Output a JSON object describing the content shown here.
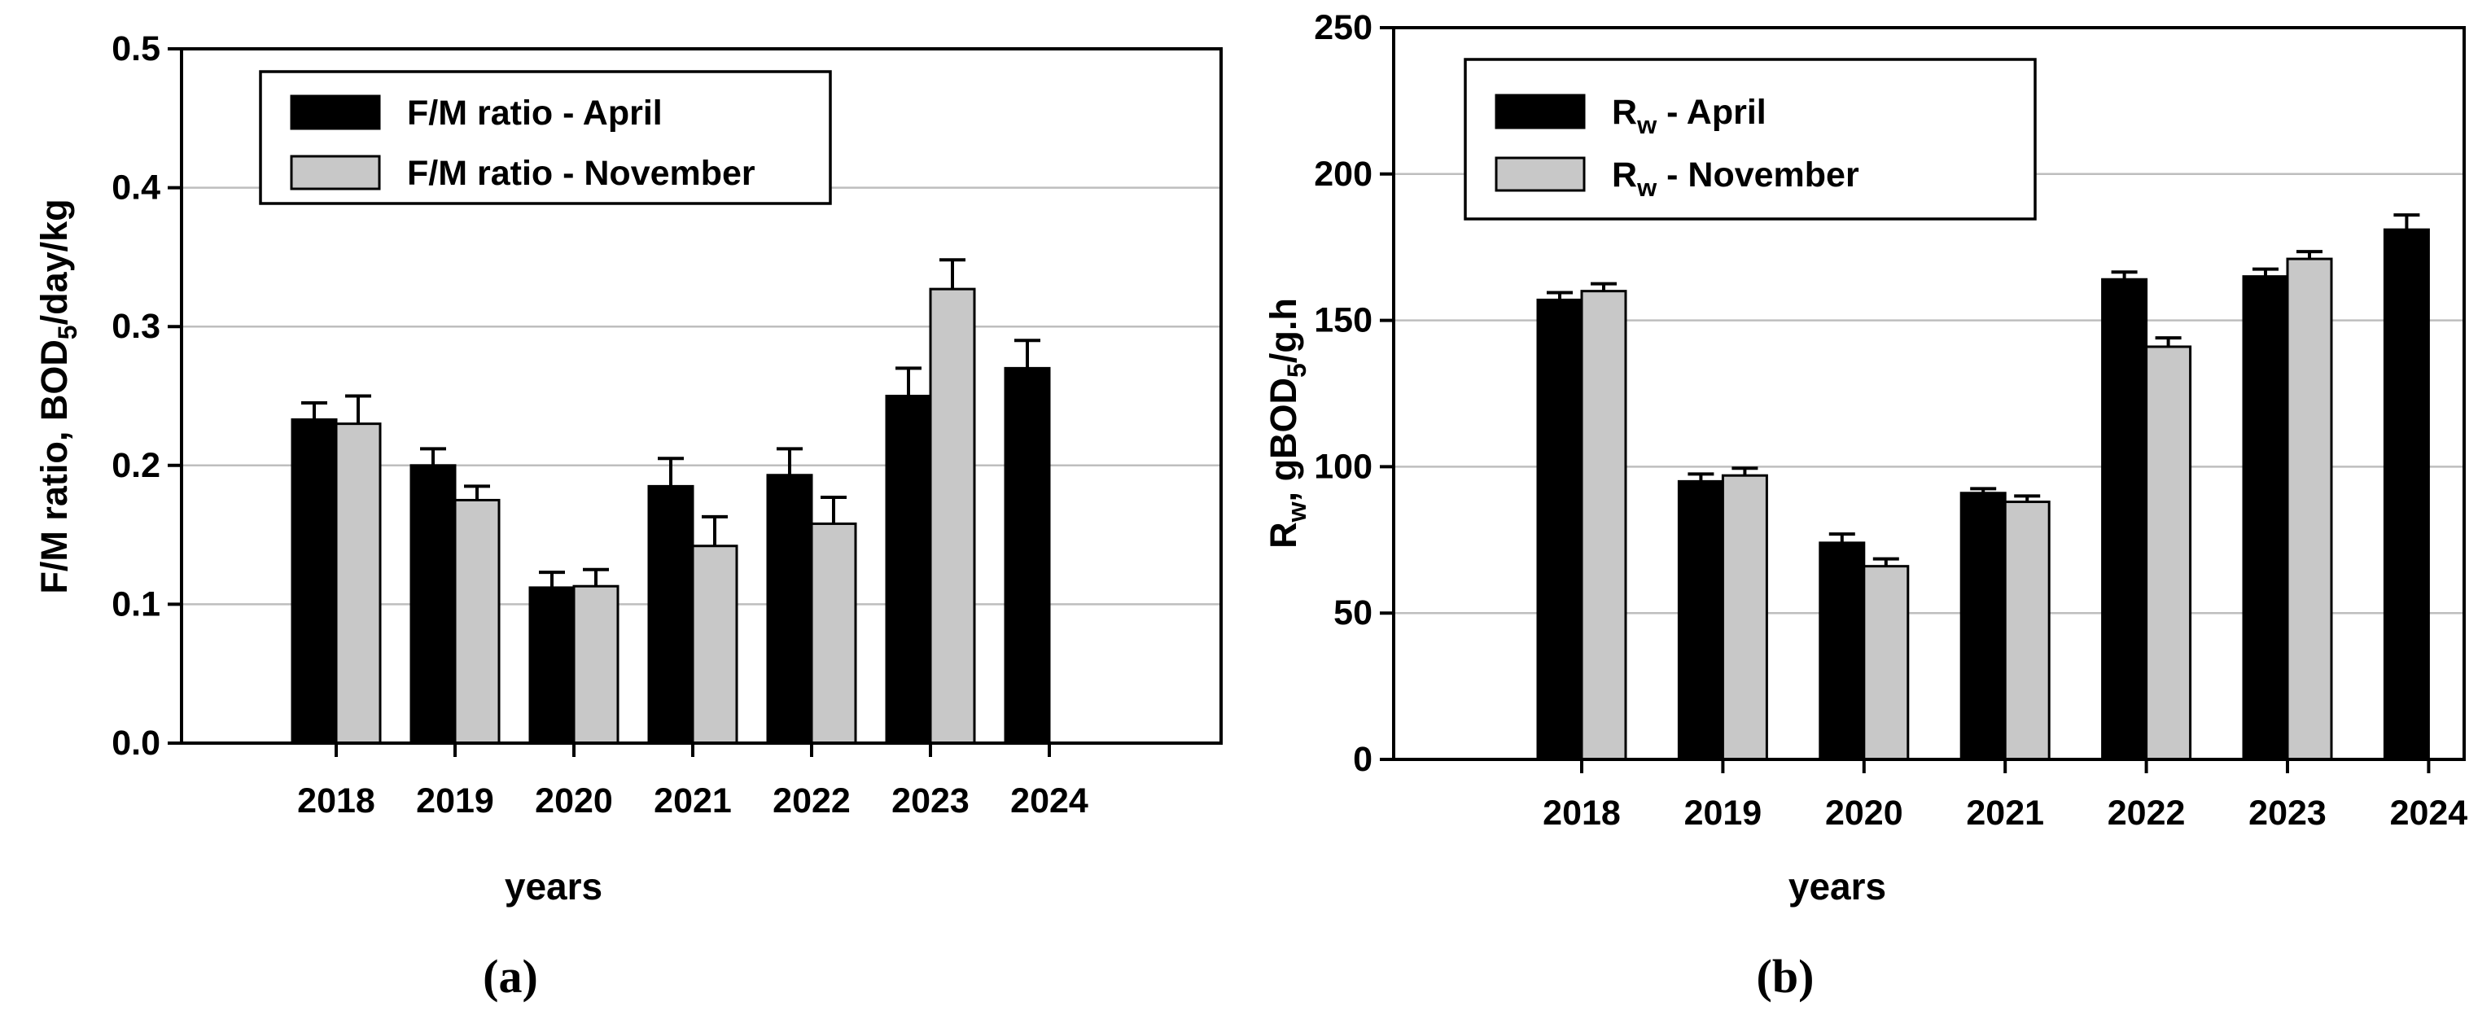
{
  "figure": {
    "type": "scientific-figure",
    "background": "#ffffff",
    "panels": [
      "a",
      "b"
    ]
  },
  "colors": {
    "april_bar": "#000000",
    "november_bar": "#c8c8c8",
    "bar_border": "#000000",
    "grid_line": "#bebebe",
    "frame": "#000000",
    "error_bar": "#000000",
    "text": "#000000"
  },
  "chart_data": [
    {
      "type": "bar",
      "panel": "a",
      "title": "(a)",
      "categories": [
        "2018",
        "2019",
        "2020",
        "2021",
        "2022",
        "2023",
        "2024"
      ],
      "series": [
        {
          "name": "F/M ratio - April",
          "name_parts": [
            {
              "t": "F/M ratio - April"
            }
          ],
          "color": "#000000",
          "values": [
            0.233,
            0.2,
            0.112,
            0.185,
            0.193,
            0.25,
            0.27
          ],
          "errors_up": [
            0.012,
            0.012,
            0.011,
            0.02,
            0.019,
            0.02,
            0.02
          ]
        },
        {
          "name": "F/M ratio - November",
          "name_parts": [
            {
              "t": "F/M ratio - November"
            }
          ],
          "color": "#c8c8c8",
          "values": [
            0.23,
            0.175,
            0.113,
            0.142,
            0.158,
            0.327,
            null
          ],
          "errors_up": [
            0.02,
            0.01,
            0.012,
            0.021,
            0.019,
            0.021,
            null
          ]
        }
      ],
      "xlabel": "years",
      "ylabel": "F/M ratio, BOD5/day/kg",
      "ylabel_parts": [
        {
          "t": "F/M ratio, BOD"
        },
        {
          "t": "5",
          "sub": true
        },
        {
          "t": "/day/kg"
        }
      ],
      "ylim": [
        0,
        0.5
      ],
      "yticks": [
        0,
        0.1,
        0.2,
        0.3,
        0.4,
        0.5
      ],
      "ytick_labels": [
        "0.0",
        "0.1",
        "0.2",
        "0.3",
        "0.4",
        "0.5"
      ],
      "grid": "horizontal",
      "legend_position": "inside-top-left",
      "error_bars": "upward"
    },
    {
      "type": "bar",
      "panel": "b",
      "title": "(b)",
      "categories": [
        "2018",
        "2019",
        "2020",
        "2021",
        "2022",
        "2023",
        "2024"
      ],
      "series": [
        {
          "name": "Rw - April",
          "name_parts": [
            {
              "t": "R"
            },
            {
              "t": "w",
              "sub": true
            },
            {
              "t": " - April"
            }
          ],
          "color": "#000000",
          "values": [
            157,
            95,
            74,
            91,
            164,
            165,
            181
          ],
          "errors_up": [
            2.5,
            2.5,
            3,
            1.5,
            2.5,
            2.5,
            5
          ]
        },
        {
          "name": "Rw - November",
          "name_parts": [
            {
              "t": "R"
            },
            {
              "t": "w",
              "sub": true
            },
            {
              "t": " - November"
            }
          ],
          "color": "#c8c8c8",
          "values": [
            160,
            97,
            66,
            88,
            141,
            171,
            null
          ],
          "errors_up": [
            2.5,
            2.5,
            2.5,
            2,
            3,
            2.5,
            null
          ]
        }
      ],
      "xlabel": "years",
      "ylabel": "Rw, gBOD5/g.h",
      "ylabel_parts": [
        {
          "t": "R"
        },
        {
          "t": "w",
          "sub": true
        },
        {
          "t": ", gBOD"
        },
        {
          "t": "5",
          "sub": true
        },
        {
          "t": "/g.h"
        }
      ],
      "ylim": [
        0,
        250
      ],
      "yticks": [
        0,
        50,
        100,
        150,
        200,
        250
      ],
      "ytick_labels": [
        "0",
        "50",
        "100",
        "150",
        "200",
        "250"
      ],
      "grid": "horizontal",
      "legend_position": "inside-top-left",
      "error_bars": "upward"
    }
  ]
}
